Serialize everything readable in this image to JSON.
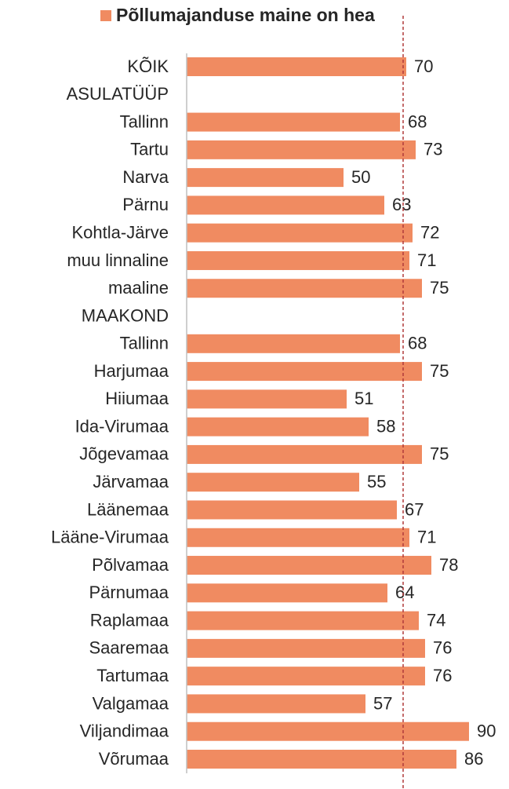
{
  "chart_data": {
    "type": "barh",
    "categories": [
      "KÕIK",
      "ASULATÜÜP",
      "Tallinn",
      "Tartu",
      "Narva",
      "Pärnu",
      "Kohtla-Järve",
      "muu linnaline",
      "maaline",
      "MAAKOND",
      "Tallinn",
      "Harjumaa",
      "Hiiumaa",
      "Ida-Virumaa",
      "Jõgevamaa",
      "Järvamaa",
      "Läänemaa",
      "Lääne-Virumaa",
      "Põlvamaa",
      "Pärnumaa",
      "Raplamaa",
      "Saaremaa",
      "Tartumaa",
      "Valgamaa",
      "Viljandimaa",
      "Võrumaa"
    ],
    "series": [
      {
        "name": "Põllumajanduse maine on hea",
        "color": "#f08b61",
        "values": [
          70,
          null,
          68,
          73,
          50,
          63,
          72,
          71,
          75,
          null,
          68,
          75,
          51,
          58,
          75,
          55,
          67,
          71,
          78,
          64,
          74,
          76,
          76,
          57,
          90,
          86
        ]
      }
    ],
    "xlim": [
      0,
      100
    ],
    "reference_line": {
      "value": 69,
      "color": "#b03a3a"
    }
  }
}
